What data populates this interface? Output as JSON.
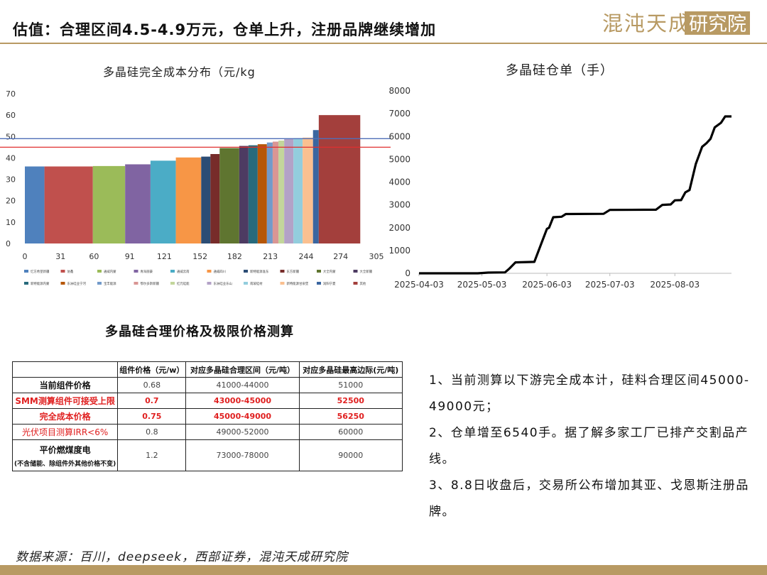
{
  "header": {
    "title": "估值：合理区间4.5-4.9万元，仓单上升，注册品牌继续增加",
    "logo_text": "混沌天成研究院"
  },
  "chart_data": [
    {
      "type": "bar",
      "title": "多晶硅完全成本分布（元/kg",
      "x_ticks": [
        0,
        31,
        60,
        91,
        121,
        152,
        182,
        213,
        244,
        274,
        305
      ],
      "xlim": [
        0,
        305
      ],
      "ylim": [
        0,
        70
      ],
      "y_ticks": [
        0,
        10,
        20,
        30,
        40,
        50,
        60,
        70
      ],
      "bars": [
        {
          "start": 0,
          "width": 17,
          "value": 36,
          "color": "#4f81bd"
        },
        {
          "start": 17,
          "width": 42,
          "value": 36,
          "color": "#c0504d"
        },
        {
          "start": 59,
          "width": 28,
          "value": 36.2,
          "color": "#9bbb59"
        },
        {
          "start": 87,
          "width": 22,
          "value": 37,
          "color": "#8064a2"
        },
        {
          "start": 109,
          "width": 22,
          "value": 38.7,
          "color": "#4bacc6"
        },
        {
          "start": 131,
          "width": 22,
          "value": 40.2,
          "color": "#f79646"
        },
        {
          "start": 153,
          "width": 8,
          "value": 40.6,
          "color": "#2c4d75"
        },
        {
          "start": 161,
          "width": 8,
          "value": 41.8,
          "color": "#772c2a"
        },
        {
          "start": 169,
          "width": 17,
          "value": 44.6,
          "color": "#5f7530"
        },
        {
          "start": 186,
          "width": 8,
          "value": 45.6,
          "color": "#4d3b62"
        },
        {
          "start": 194,
          "width": 8,
          "value": 45.9,
          "color": "#276a7c"
        },
        {
          "start": 202,
          "width": 8,
          "value": 46.4,
          "color": "#b65708"
        },
        {
          "start": 210,
          "width": 5,
          "value": 47.2,
          "color": "#729aca"
        },
        {
          "start": 215,
          "width": 5,
          "value": 47.6,
          "color": "#d99694"
        },
        {
          "start": 220,
          "width": 5,
          "value": 48.1,
          "color": "#c3d69b"
        },
        {
          "start": 225,
          "width": 8,
          "value": 49,
          "color": "#b3a2c7"
        },
        {
          "start": 233,
          "width": 8,
          "value": 49.2,
          "color": "#93cddd"
        },
        {
          "start": 241,
          "width": 9,
          "value": 49.5,
          "color": "#fac090"
        },
        {
          "start": 250,
          "width": 5,
          "value": 53,
          "color": "#3a66a0"
        },
        {
          "start": 255,
          "width": 36,
          "value": 60,
          "color": "#a33f3c"
        }
      ],
      "ref_lines": [
        {
          "value": 49,
          "color": "#4f6fb8"
        },
        {
          "value": 45,
          "color": "#e03030"
        }
      ],
      "legend": [
        {
          "name": "忆方希望新疆",
          "color": "#4f81bd"
        },
        {
          "name": "协鑫",
          "color": "#c0504d"
        },
        {
          "name": "通威内蒙",
          "color": "#9bbb59"
        },
        {
          "name": "青海丽豪",
          "color": "#8064a2"
        },
        {
          "name": "通威云南",
          "color": "#4bacc6"
        },
        {
          "name": "通威四川",
          "color": "#f79646"
        },
        {
          "name": "新特能源准东",
          "color": "#2c4d75"
        },
        {
          "name": "东方新疆",
          "color": "#772c2a"
        },
        {
          "name": "大全内蒙",
          "color": "#5f7530"
        },
        {
          "name": "大全新疆",
          "color": "#4d3b62"
        },
        {
          "name": "新特能源内蒙",
          "color": "#276a7c"
        },
        {
          "name": "东洲硅业宁河",
          "color": "#b65708"
        },
        {
          "name": "宝丰能源",
          "color": "#729aca"
        },
        {
          "name": "鄂尔多斯新疆",
          "color": "#d99694"
        },
        {
          "name": "红元硅能",
          "color": "#c3d69b"
        },
        {
          "name": "东洲硅业乐山",
          "color": "#b3a2c7"
        },
        {
          "name": "南玻硅材",
          "color": "#93cddd"
        },
        {
          "name": "新特能源甘泉堡",
          "color": "#fac090"
        },
        {
          "name": "润阳宁夏",
          "color": "#3a66a0"
        },
        {
          "name": "其他",
          "color": "#a33f3c"
        }
      ]
    },
    {
      "type": "line",
      "title": "多晶硅仓单（手）",
      "x_ticks": [
        "2025-04-03",
        "2025-05-03",
        "2025-06-03",
        "2025-07-03",
        "2025-08-03"
      ],
      "xlim": [
        "2025-04-03",
        "2025-08-30"
      ],
      "ylim": [
        0,
        8000
      ],
      "y_ticks": [
        0,
        1000,
        2000,
        3000,
        4000,
        5000,
        6000,
        7000,
        8000
      ],
      "color": "#000000",
      "points": [
        [
          "2025-04-03",
          0
        ],
        [
          "2025-05-01",
          0
        ],
        [
          "2025-05-06",
          30
        ],
        [
          "2025-05-14",
          40
        ],
        [
          "2025-05-16",
          200
        ],
        [
          "2025-05-19",
          480
        ],
        [
          "2025-05-28",
          500
        ],
        [
          "2025-06-03",
          1950
        ],
        [
          "2025-06-04",
          2000
        ],
        [
          "2025-06-06",
          2460
        ],
        [
          "2025-06-10",
          2480
        ],
        [
          "2025-06-12",
          2600
        ],
        [
          "2025-06-30",
          2610
        ],
        [
          "2025-07-03",
          2780
        ],
        [
          "2025-07-25",
          2790
        ],
        [
          "2025-07-28",
          3000
        ],
        [
          "2025-08-01",
          3020
        ],
        [
          "2025-08-03",
          3200
        ],
        [
          "2025-08-06",
          3210
        ],
        [
          "2025-08-08",
          3550
        ],
        [
          "2025-08-10",
          3650
        ],
        [
          "2025-08-13",
          4800
        ],
        [
          "2025-08-16",
          5550
        ],
        [
          "2025-08-18",
          5700
        ],
        [
          "2025-08-20",
          5900
        ],
        [
          "2025-08-22",
          6400
        ],
        [
          "2025-08-25",
          6600
        ],
        [
          "2025-08-27",
          6880
        ],
        [
          "2025-08-30",
          6880
        ]
      ]
    }
  ],
  "table": {
    "title": "多晶硅合理价格及极限价格测算",
    "headers": [
      "",
      "组件价格（元/w）",
      "对应多晶硅合理区间（元/吨）",
      "对应多晶硅最高边际(元/吨)"
    ],
    "rows": [
      {
        "label": "当前组件价格",
        "price": "0.68",
        "range": "41000-44000",
        "max": "51000"
      },
      {
        "label": "SMM测算组件可接受上限",
        "price": "0.7",
        "range": "43000-45000",
        "max": "52500"
      },
      {
        "label": "完全成本价格",
        "price": "0.75",
        "range": "45000-49000",
        "max": "56250"
      },
      {
        "label": "光伏项目测算IRR<6%",
        "price": "0.8",
        "range": "49000-52000",
        "max": "60000"
      },
      {
        "label": "平价燃煤度电",
        "sublabel": "(不含储能、除组件外其他价格不变)",
        "price": "1.2",
        "range": "73000-78000",
        "max": "90000"
      }
    ]
  },
  "notes": [
    "1、当前测算以下游完全成本计，硅料合理区间45000-49000元；",
    "2、仓单增至6540手。据了解多家工厂已排产交割品产线。",
    "3、8.8日收盘后，交易所公布增加其亚、戈恩斯注册品牌。"
  ],
  "source": "数据来源：百川，deepseek，西部证券，混沌天成研究院"
}
